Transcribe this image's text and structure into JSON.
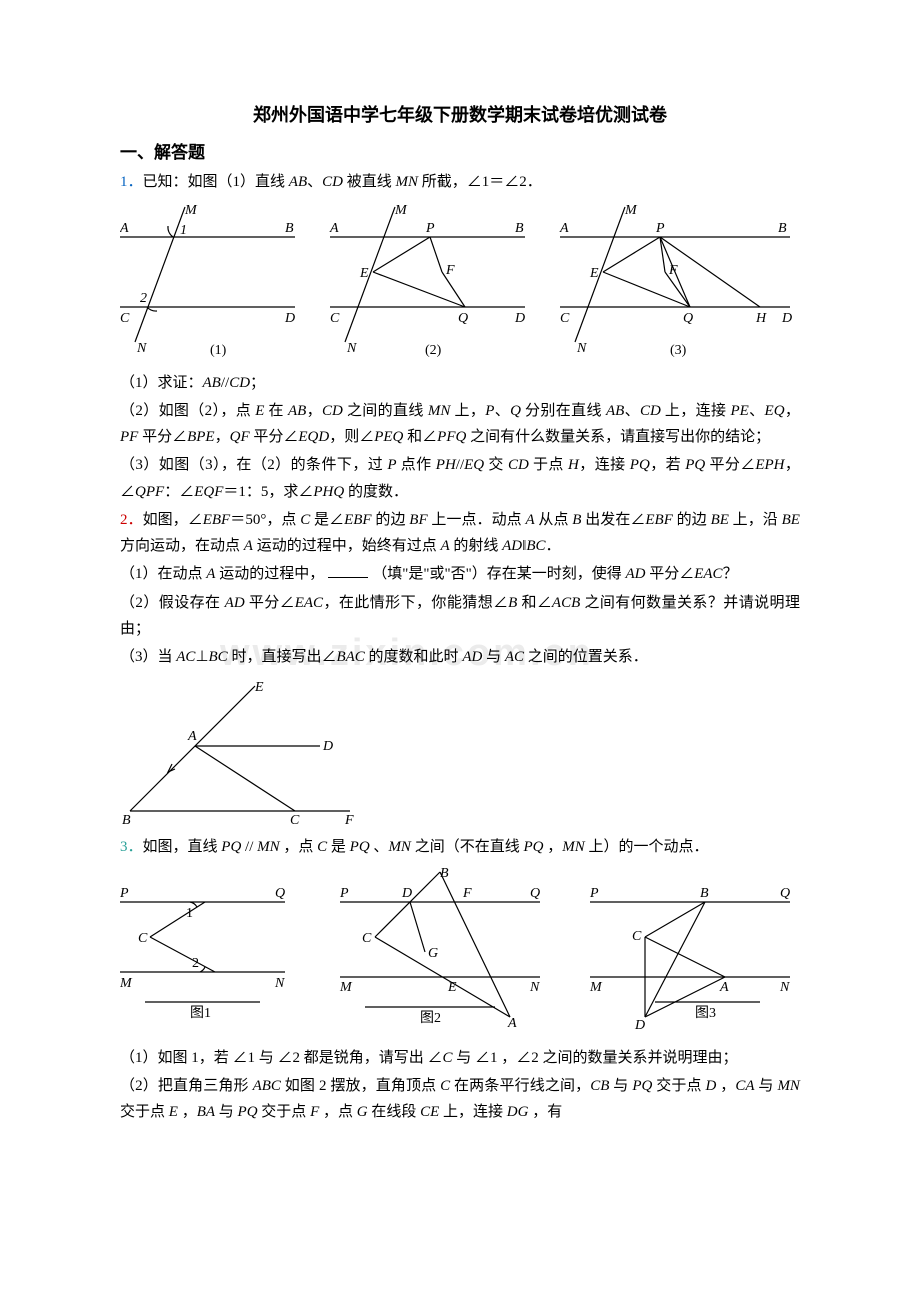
{
  "title": "郑州外国语中学七年级下册数学期末试卷培优测试卷",
  "section": "一、解答题",
  "watermark": "www.zixin.com.cn",
  "q1": {
    "num": "1．",
    "stem": "已知：如图（1）直线 <span class=\"italic\">AB</span>、<span class=\"italic\">CD</span> 被直线 <span class=\"italic\">MN</span> 所截，∠1＝∠2．",
    "fig": {
      "labels": {
        "M": "M",
        "N": "N",
        "A": "A",
        "B": "B",
        "C": "C",
        "D": "D",
        "E": "E",
        "F": "F",
        "P": "P",
        "Q": "Q",
        "H": "H",
        "one": "1",
        "two": "2",
        "cap1": "(1)",
        "cap2": "(2)",
        "cap3": "(3)"
      },
      "stroke": "#000000",
      "stroke_width": 1.2,
      "label_fontsize": 14,
      "label_font": "Times New Roman, serif",
      "label_style": "italic"
    },
    "p1": "（1）求证：<span class=\"italic\">AB</span>//<span class=\"italic\">CD</span>；",
    "p2": "（2）如图（2），点 <span class=\"italic\">E</span> 在 <span class=\"italic\">AB</span>，<span class=\"italic\">CD</span> 之间的直线 <span class=\"italic\">MN</span> 上，<span class=\"italic\">P</span>、<span class=\"italic\">Q</span> 分别在直线 <span class=\"italic\">AB</span>、<span class=\"italic\">CD</span> 上，连接 <span class=\"italic\">PE</span>、<span class=\"italic\">EQ</span>，<span class=\"italic\">PF</span> 平分∠<span class=\"italic\">BPE</span>，<span class=\"italic\">QF</span> 平分∠<span class=\"italic\">EQD</span>，则∠<span class=\"italic\">PEQ</span> 和∠<span class=\"italic\">PFQ</span> 之间有什么数量关系，请直接写出你的结论；",
    "p3": "（3）如图（3），在（2）的条件下，过 <span class=\"italic\">P</span> 点作 <span class=\"italic\">PH</span>//<span class=\"italic\">EQ</span> 交 <span class=\"italic\">CD</span> 于点 <span class=\"italic\">H</span>，连接 <span class=\"italic\">PQ</span>，若 <span class=\"italic\">PQ</span> 平分∠<span class=\"italic\">EPH</span>，∠<span class=\"italic\">QPF</span>：∠<span class=\"italic\">EQF</span>＝1：5，求∠<span class=\"italic\">PHQ</span> 的度数．"
  },
  "q2": {
    "num": "2．",
    "stem": "如图，∠<span class=\"italic\">EBF</span>＝50°，点 <span class=\"italic\">C</span> 是∠<span class=\"italic\">EBF</span> 的边 <span class=\"italic\">BF</span> 上一点．动点 <span class=\"italic\">A</span> 从点 <span class=\"italic\">B</span> 出发在∠<span class=\"italic\">EBF</span> 的边 <span class=\"italic\">BE</span> 上，沿 <span class=\"italic\">BE</span> 方向运动，在动点 <span class=\"italic\">A</span> 运动的过程中，始终有过点 <span class=\"italic\">A</span> 的射线 <span class=\"italic\">AD</span>‖<span class=\"italic\">BC</span>．",
    "p1": "（1）在动点 <span class=\"italic\">A</span> 运动的过程中，<span class=\"blank\"></span>（填\"是\"或\"否\"）存在某一时刻，使得 <span class=\"italic\">AD</span> 平分∠<span class=\"italic\">EAC</span>？",
    "p2": "（2）假设存在 <span class=\"italic\">AD</span> 平分∠<span class=\"italic\">EAC</span>，在此情形下，你能猜想∠<span class=\"italic\">B</span> 和∠<span class=\"italic\">ACB</span> 之间有何数量关系？并请说明理由；",
    "p3": "（3）当 <span class=\"italic\">AC</span>⊥<span class=\"italic\">BC</span> 时，直接写出∠<span class=\"italic\">BAC</span> 的度数和此时 <span class=\"italic\">AD</span> 与 <span class=\"italic\">AC</span> 之间的位置关系．",
    "fig": {
      "labels": {
        "E": "E",
        "A": "A",
        "D": "D",
        "B": "B",
        "C": "C",
        "F": "F"
      },
      "stroke": "#000000",
      "stroke_width": 1.2,
      "label_fontsize": 14,
      "label_font": "Times New Roman, serif",
      "label_style": "italic"
    }
  },
  "q3": {
    "num": "3．",
    "stem": "如图，直线 <span class=\"italic\">PQ</span> // <span class=\"italic\">MN</span> ，点 <span class=\"italic\">C</span> 是 <span class=\"italic\">PQ</span> 、<span class=\"italic\">MN</span> 之间（不在直线 <span class=\"italic\">PQ</span> ，<span class=\"italic\">MN</span> 上）的一个动点．",
    "fig": {
      "labels": {
        "P": "P",
        "Q": "Q",
        "M": "M",
        "N": "N",
        "C": "C",
        "B": "B",
        "D": "D",
        "F": "F",
        "G": "G",
        "E": "E",
        "A": "A",
        "one": "1",
        "two": "2",
        "cap1": "图1",
        "cap2": "图2",
        "cap3": "图3"
      },
      "stroke": "#000000",
      "stroke_width": 1.2,
      "label_fontsize": 14,
      "label_font": "Times New Roman, serif",
      "label_style": "italic"
    },
    "p1": "（1）如图 1，若 ∠1 与 ∠2 都是锐角，请写出 ∠<span class=\"italic\">C</span> 与 ∠1 ，∠2 之间的数量关系并说明理由；",
    "p2": "（2）把直角三角形 <span class=\"italic\">ABC</span> 如图 2 摆放，直角顶点 <span class=\"italic\">C</span> 在两条平行线之间，<span class=\"italic\">CB</span> 与 <span class=\"italic\">PQ</span> 交于点 <span class=\"italic\">D</span> ，<span class=\"italic\">CA</span> 与 <span class=\"italic\">MN</span> 交于点 <span class=\"italic\">E</span> ，<span class=\"italic\">BA</span> 与 <span class=\"italic\">PQ</span> 交于点 <span class=\"italic\">F</span> ，点 <span class=\"italic\">G</span> 在线段 <span class=\"italic\">CE</span> 上，连接 <span class=\"italic\">DG</span> ，有"
  }
}
